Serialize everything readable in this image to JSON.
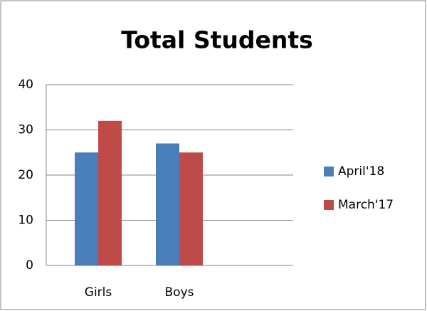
{
  "chart_data": {
    "type": "bar",
    "title": "Total Students",
    "categories": [
      "Girls",
      "Boys"
    ],
    "series": [
      {
        "name": "April'18",
        "color": "#4a7ebb",
        "values": [
          25,
          27
        ]
      },
      {
        "name": "March'17",
        "color": "#be4b48",
        "values": [
          32,
          25
        ]
      }
    ],
    "ylim": [
      0,
      40
    ],
    "yticks": [
      0,
      10,
      20,
      30,
      40
    ],
    "grid": true,
    "legend": "right"
  }
}
